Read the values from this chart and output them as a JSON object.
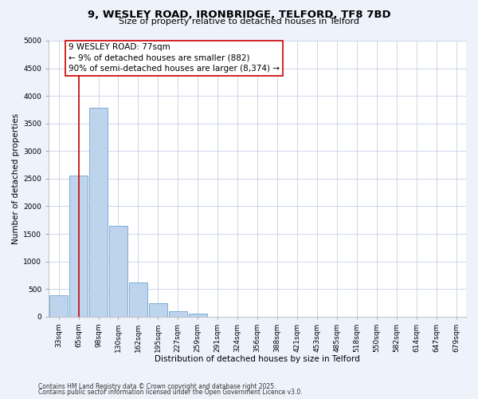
{
  "title_line1": "9, WESLEY ROAD, IRONBRIDGE, TELFORD, TF8 7BD",
  "title_line2": "Size of property relative to detached houses in Telford",
  "xlabel": "Distribution of detached houses by size in Telford",
  "ylabel": "Number of detached properties",
  "bar_labels": [
    "33sqm",
    "65sqm",
    "98sqm",
    "130sqm",
    "162sqm",
    "195sqm",
    "227sqm",
    "259sqm",
    "291sqm",
    "324sqm",
    "356sqm",
    "388sqm",
    "421sqm",
    "453sqm",
    "485sqm",
    "518sqm",
    "550sqm",
    "582sqm",
    "614sqm",
    "647sqm",
    "679sqm"
  ],
  "bar_values": [
    390,
    2550,
    3780,
    1650,
    620,
    250,
    100,
    50,
    0,
    0,
    0,
    0,
    0,
    0,
    0,
    0,
    0,
    0,
    0,
    0,
    0
  ],
  "bar_color": "#bed3ec",
  "bar_edge_color": "#7bafd4",
  "ylim": [
    0,
    5000
  ],
  "yticks": [
    0,
    500,
    1000,
    1500,
    2000,
    2500,
    3000,
    3500,
    4000,
    4500,
    5000
  ],
  "property_line_x": 1.0,
  "property_line_color": "#cc0000",
  "annotation_text": "9 WESLEY ROAD: 77sqm\n← 9% of detached houses are smaller (882)\n90% of semi-detached houses are larger (8,374) →",
  "annotation_box_color": "#cc0000",
  "annotation_box_fill": "#ffffff",
  "footer_line1": "Contains HM Land Registry data © Crown copyright and database right 2025.",
  "footer_line2": "Contains public sector information licensed under the Open Government Licence v3.0.",
  "background_color": "#eef2fb",
  "plot_background_color": "#ffffff",
  "grid_color": "#c8d0e8",
  "title_fontsize": 9.5,
  "subtitle_fontsize": 8,
  "ylabel_fontsize": 7.5,
  "xlabel_fontsize": 7.5,
  "tick_fontsize": 6.5,
  "footer_fontsize": 5.5,
  "ann_fontsize": 7.5
}
